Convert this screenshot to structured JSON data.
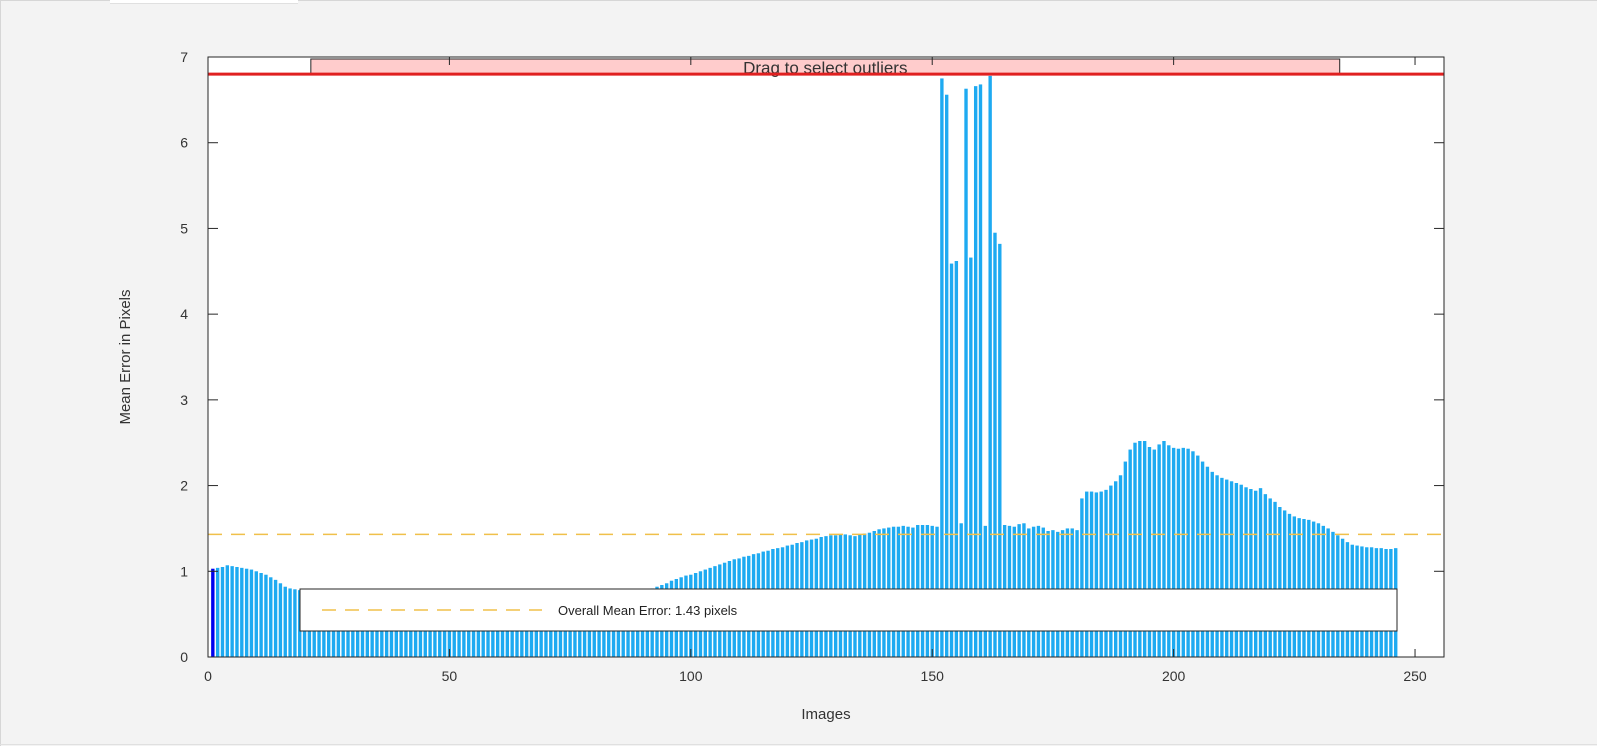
{
  "chart_data": {
    "type": "bar",
    "xlabel": "Images",
    "ylabel": "Mean Error in Pixels",
    "xlim": [
      0,
      256
    ],
    "ylim": [
      0,
      7
    ],
    "xticks": [
      "0",
      "50",
      "100",
      "150",
      "200",
      "250"
    ],
    "yticks": [
      "0",
      "1",
      "2",
      "3",
      "4",
      "5",
      "6",
      "7"
    ],
    "grid": false,
    "overall_mean": 1.43,
    "outlier_threshold": 6.8,
    "highlighted_image": 1,
    "bar_color": "#1eaaf1",
    "highlight_color": "#0000ee",
    "mean_line_color": "#f0c04a",
    "threshold_color": "#e02020",
    "drag_box_color": "#ffcccc",
    "drag_label": "Drag to select outliers",
    "legend_label": "Overall Mean Error: 1.43 pixels",
    "values": [
      1.03,
      1.04,
      1.05,
      1.07,
      1.06,
      1.05,
      1.04,
      1.03,
      1.02,
      1.0,
      0.98,
      0.96,
      0.93,
      0.9,
      0.86,
      0.82,
      0.8,
      0.79,
      0.78,
      0.77,
      0.76,
      0.76,
      0.75,
      0.75,
      0.75,
      0.74,
      0.74,
      0.74,
      0.74,
      0.74,
      0.73,
      0.73,
      0.73,
      0.73,
      0.73,
      0.73,
      0.73,
      0.73,
      0.73,
      0.73,
      0.73,
      0.73,
      0.73,
      0.73,
      0.73,
      0.73,
      0.73,
      0.73,
      0.73,
      0.73,
      0.73,
      0.73,
      0.73,
      0.73,
      0.73,
      0.73,
      0.73,
      0.73,
      0.73,
      0.73,
      0.73,
      0.73,
      0.73,
      0.73,
      0.73,
      0.73,
      0.73,
      0.73,
      0.73,
      0.73,
      0.73,
      0.73,
      0.73,
      0.73,
      0.73,
      0.73,
      0.73,
      0.73,
      0.73,
      0.73,
      0.73,
      0.73,
      0.73,
      0.73,
      0.73,
      0.73,
      0.74,
      0.74,
      0.75,
      0.76,
      0.78,
      0.8,
      0.82,
      0.84,
      0.86,
      0.89,
      0.91,
      0.93,
      0.95,
      0.96,
      0.98,
      1.0,
      1.02,
      1.04,
      1.06,
      1.08,
      1.1,
      1.12,
      1.14,
      1.15,
      1.17,
      1.18,
      1.2,
      1.21,
      1.23,
      1.24,
      1.26,
      1.27,
      1.28,
      1.3,
      1.31,
      1.33,
      1.34,
      1.36,
      1.37,
      1.38,
      1.4,
      1.41,
      1.42,
      1.42,
      1.43,
      1.43,
      1.42,
      1.41,
      1.43,
      1.44,
      1.45,
      1.47,
      1.49,
      1.5,
      1.51,
      1.52,
      1.52,
      1.53,
      1.52,
      1.51,
      1.54,
      1.54,
      1.54,
      1.53,
      1.52,
      6.75,
      6.56,
      4.59,
      4.62,
      1.56,
      6.63,
      4.66,
      6.66,
      6.68,
      1.53,
      6.78,
      4.95,
      4.82,
      1.54,
      1.53,
      1.52,
      1.55,
      1.56,
      1.5,
      1.52,
      1.53,
      1.51,
      1.47,
      1.48,
      1.46,
      1.48,
      1.5,
      1.5,
      1.48,
      1.85,
      1.93,
      1.93,
      1.92,
      1.93,
      1.95,
      2.0,
      2.05,
      2.12,
      2.28,
      2.42,
      2.5,
      2.52,
      2.52,
      2.45,
      2.42,
      2.48,
      2.52,
      2.47,
      2.44,
      2.43,
      2.44,
      2.43,
      2.4,
      2.35,
      2.28,
      2.22,
      2.16,
      2.12,
      2.09,
      2.07,
      2.05,
      2.03,
      2.01,
      1.98,
      1.96,
      1.94,
      1.97,
      1.9,
      1.85,
      1.81,
      1.75,
      1.71,
      1.67,
      1.64,
      1.62,
      1.61,
      1.6,
      1.58,
      1.56,
      1.53,
      1.5,
      1.46,
      1.42,
      1.38,
      1.34,
      1.31,
      1.3,
      1.29,
      1.28,
      1.28,
      1.27,
      1.27,
      1.26,
      1.26,
      1.27
    ]
  }
}
